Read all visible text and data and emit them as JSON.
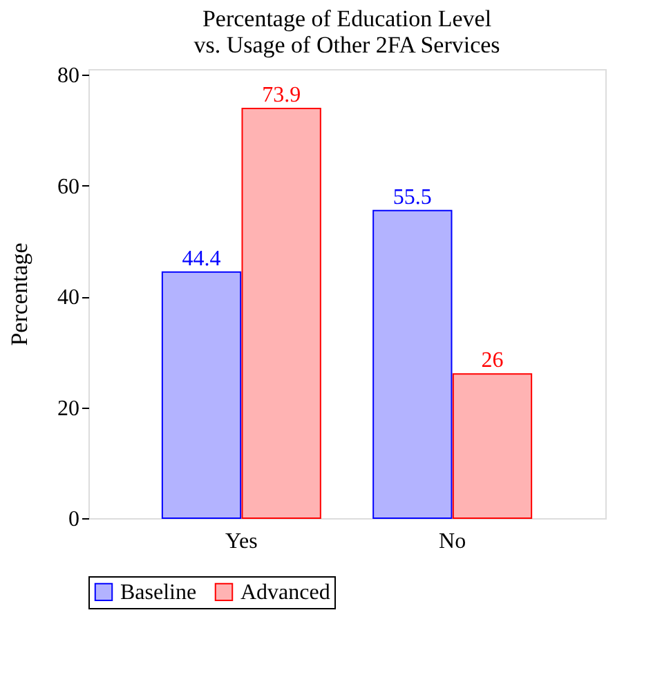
{
  "chart_data": {
    "type": "bar",
    "title": "Percentage of Education Level\nvs. Usage of Other 2FA Services",
    "ylabel": "Percentage",
    "categories": [
      "Yes",
      "No"
    ],
    "series": [
      {
        "name": "Baseline",
        "color": "#b3b3ff",
        "values": [
          44.4,
          55.5
        ]
      },
      {
        "name": "Advanced",
        "color": "#ffb3b3",
        "values": [
          73.9,
          26
        ]
      }
    ],
    "ylim": [
      0,
      81
    ],
    "yticks": [
      0,
      20,
      40,
      60,
      80
    ],
    "grid": false,
    "legend": "bottom",
    "data_labels": true
  }
}
